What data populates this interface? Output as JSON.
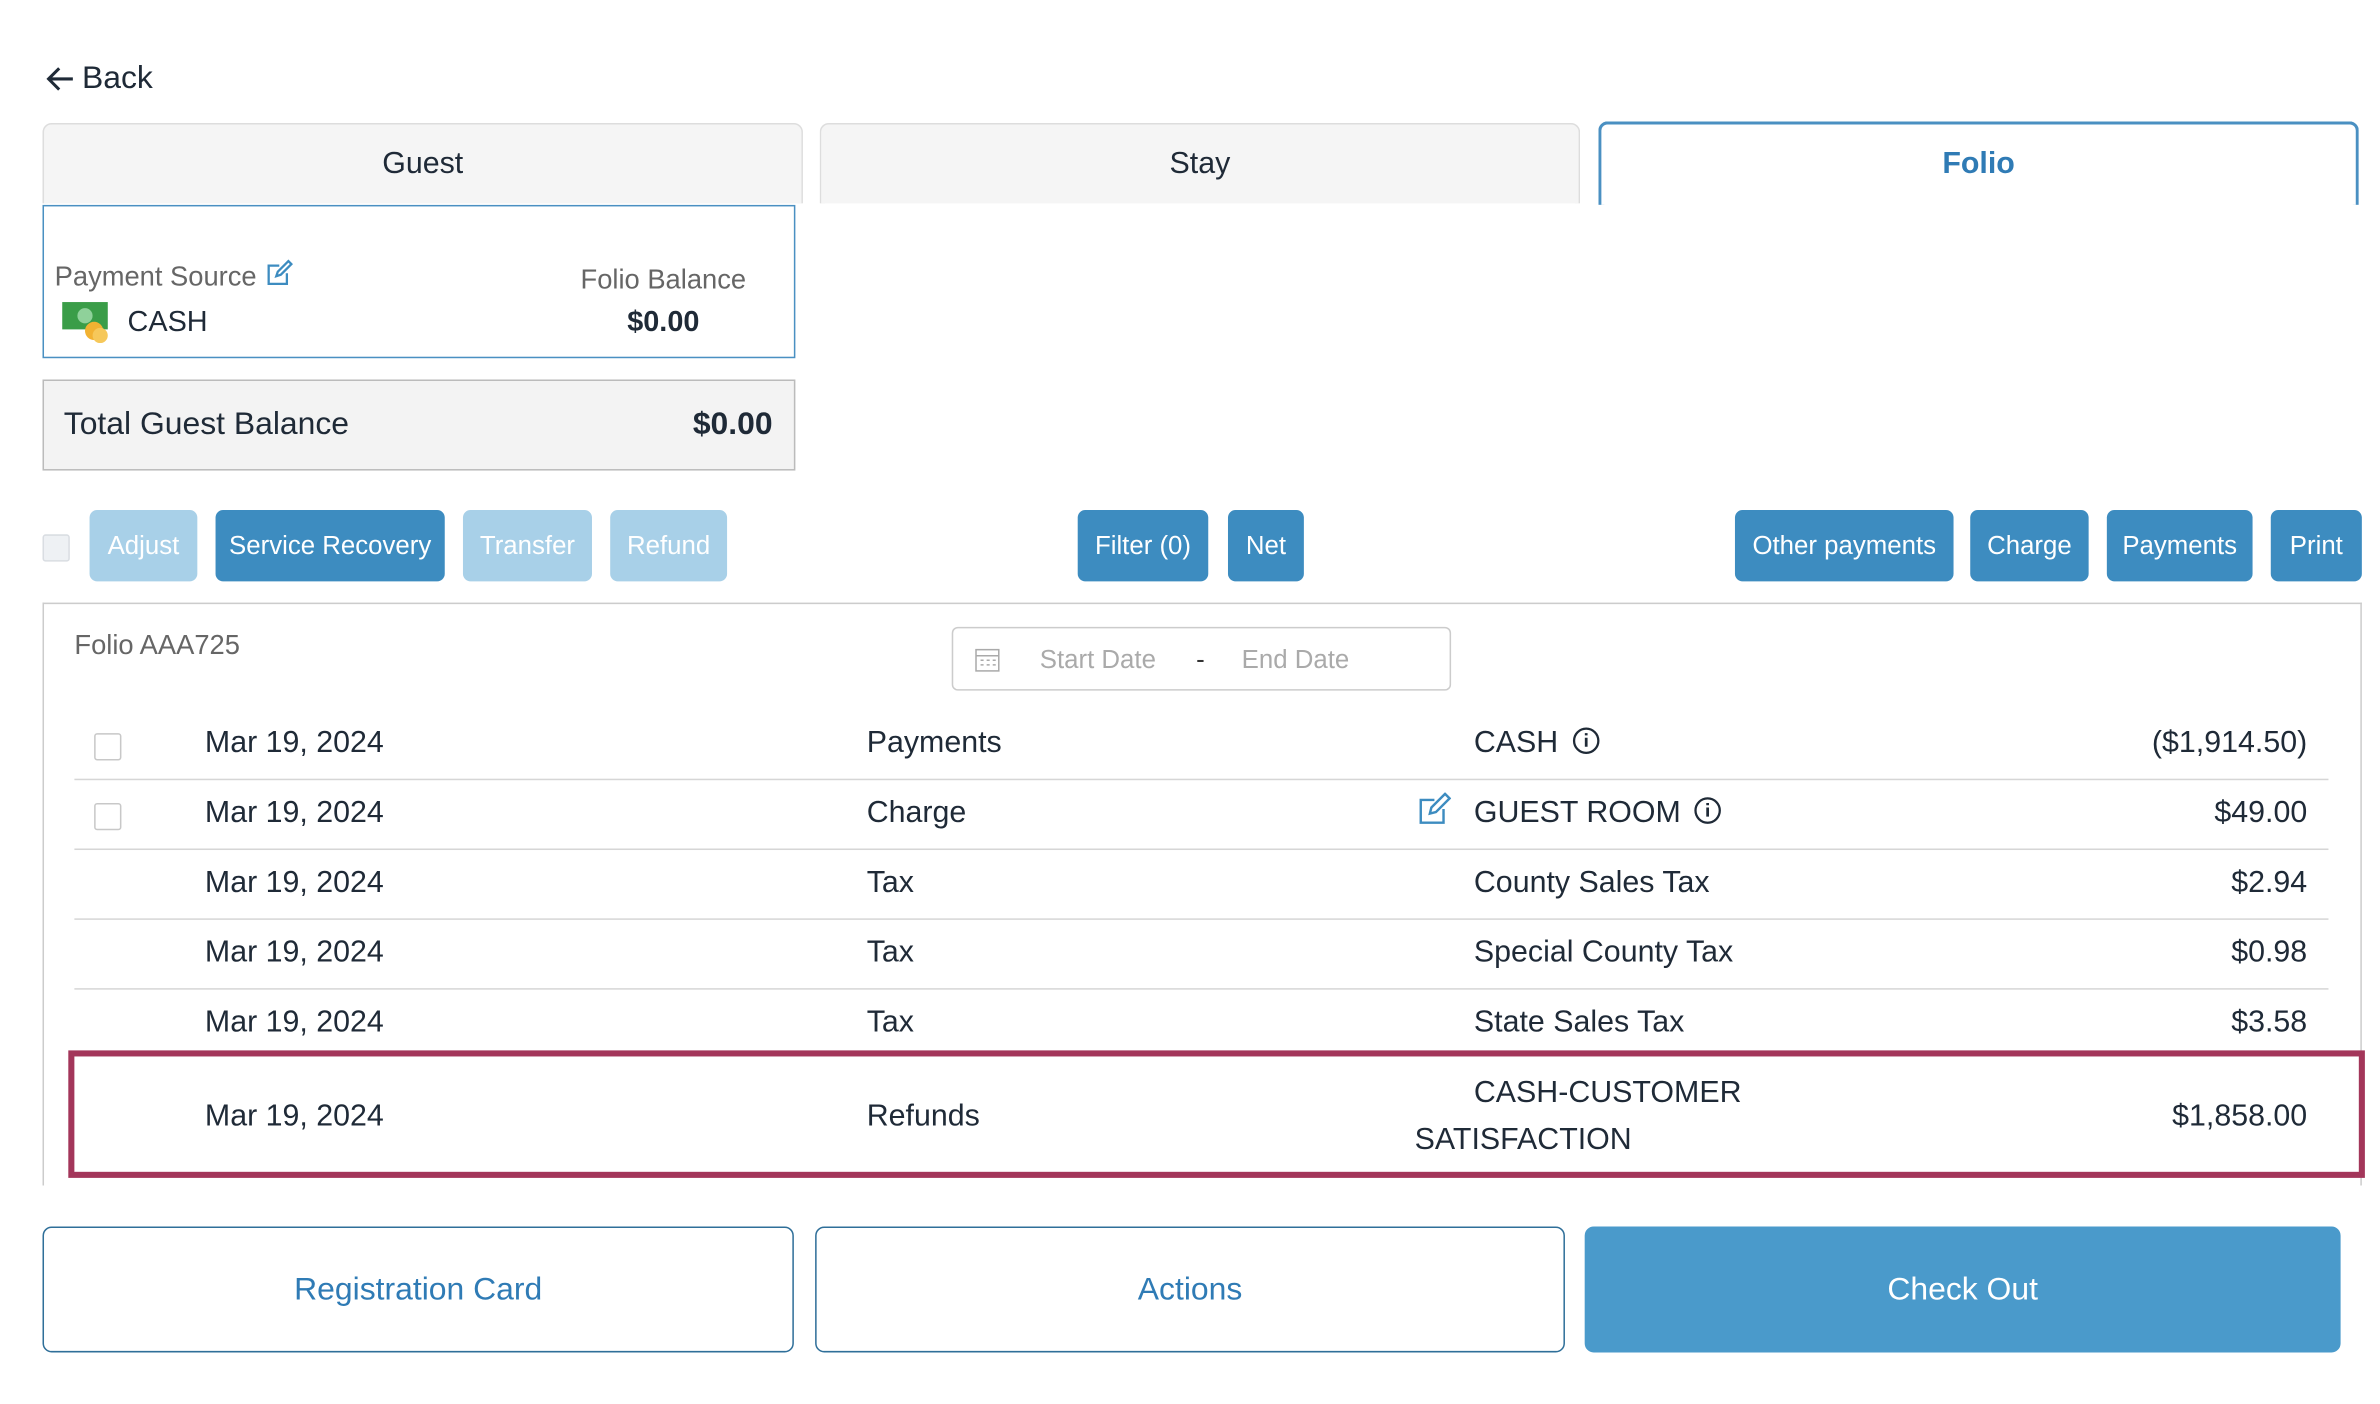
{
  "back": "Back",
  "tabs": [
    "Guest",
    "Stay",
    "Folio"
  ],
  "active_tab": 2,
  "payment_source": {
    "label": "Payment Source",
    "value": "CASH"
  },
  "folio_balance": {
    "label": "Folio Balance",
    "value": "$0.00"
  },
  "total_guest_balance": {
    "label": "Total Guest Balance",
    "value": "$0.00"
  },
  "toolbar": {
    "left": [
      {
        "label": "Adjust",
        "enabled": false
      },
      {
        "label": "Service Recovery",
        "enabled": true
      },
      {
        "label": "Transfer",
        "enabled": false
      },
      {
        "label": "Refund",
        "enabled": false
      }
    ],
    "middle": [
      {
        "label": "Filter (0)",
        "enabled": true
      },
      {
        "label": "Net",
        "enabled": true
      }
    ],
    "right": [
      {
        "label": "Other payments",
        "enabled": true
      },
      {
        "label": "Charge",
        "enabled": true
      },
      {
        "label": "Payments",
        "enabled": true
      },
      {
        "label": "Print",
        "enabled": true
      }
    ]
  },
  "folio": {
    "title": "Folio AAA725",
    "start_date": "Start Date",
    "date_separator": "-",
    "end_date": "End Date",
    "rows": [
      {
        "date": "Mar 19, 2024",
        "type": "Payments",
        "description": "CASH",
        "amount": "($1,914.50)",
        "checkbox": true,
        "info": true,
        "edit": false,
        "highlighted": false
      },
      {
        "date": "Mar 19, 2024",
        "type": "Charge",
        "description": "GUEST ROOM",
        "amount": "$49.00",
        "checkbox": true,
        "info": true,
        "edit": true,
        "highlighted": false
      },
      {
        "date": "Mar 19, 2024",
        "type": "Tax",
        "description": "County Sales Tax",
        "amount": "$2.94",
        "checkbox": false,
        "info": false,
        "edit": false,
        "highlighted": false
      },
      {
        "date": "Mar 19, 2024",
        "type": "Tax",
        "description": "Special County Tax",
        "amount": "$0.98",
        "checkbox": false,
        "info": false,
        "edit": false,
        "highlighted": false
      },
      {
        "date": "Mar 19, 2024",
        "type": "Tax",
        "description": "State Sales Tax",
        "amount": "$3.58",
        "checkbox": false,
        "info": false,
        "edit": false,
        "highlighted": false
      },
      {
        "date": "Mar 19, 2024",
        "type": "Refunds",
        "description": "CASH-CUSTOMER SATISFACTION",
        "amount": "$1,858.00",
        "checkbox": false,
        "info": false,
        "edit": false,
        "highlighted": true
      }
    ]
  },
  "footer": [
    {
      "label": "Registration Card",
      "primary": false
    },
    {
      "label": "Actions",
      "primary": false
    },
    {
      "label": "Check Out",
      "primary": true
    }
  ]
}
